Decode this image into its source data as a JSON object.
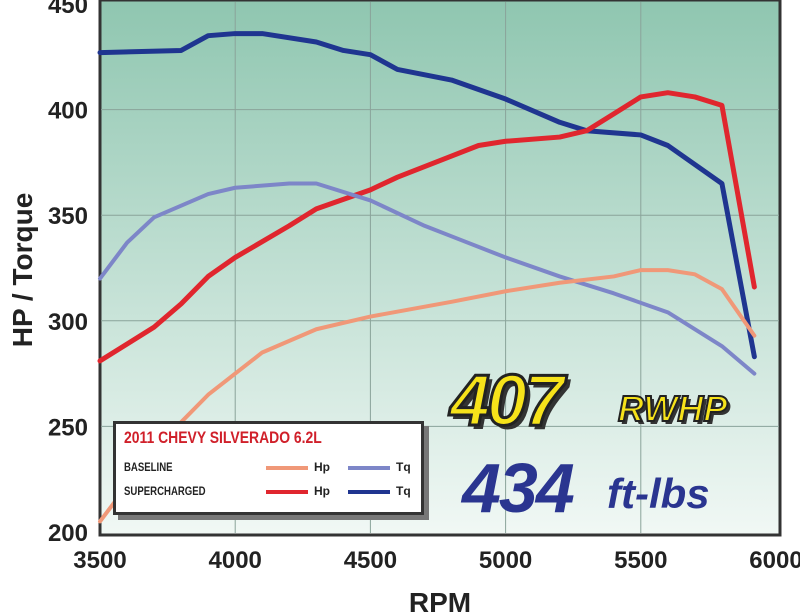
{
  "chart_data": {
    "type": "line",
    "xlabel": "RPM",
    "ylabel": "HP / Torque",
    "xlim": [
      3500,
      6000
    ],
    "ylim": [
      200,
      450
    ],
    "xticks": [
      "3500",
      "4000",
      "4500",
      "5000",
      "5500",
      "6000"
    ],
    "yticks": [
      "200",
      "250",
      "300",
      "350",
      "400",
      "450"
    ],
    "grid": true,
    "legend": {
      "title": "2011 CHEVY SILVERADO 6.2L",
      "placement": "bottom-left",
      "rows": [
        {
          "label": "BASELINE",
          "hp": "Hp",
          "tq": "Tq"
        },
        {
          "label": "SUPERCHARGED",
          "hp": "Hp",
          "tq": "Tq"
        }
      ]
    },
    "annotations": {
      "hp_value": "407",
      "hp_unit": "RWHP",
      "tq_value": "434",
      "tq_unit": "ft-lbs"
    },
    "series": [
      {
        "name": "SUPERCHARGED Tq",
        "color": "#1f3590",
        "x": [
          3500,
          3800,
          3900,
          4000,
          4100,
          4300,
          4400,
          4500,
          4600,
          4800,
          5000,
          5200,
          5300,
          5500,
          5600,
          5800,
          5920
        ],
        "y": [
          427,
          428,
          435,
          436,
          436,
          432,
          428,
          426,
          419,
          414,
          405,
          394,
          390,
          388,
          383,
          365,
          283
        ]
      },
      {
        "name": "SUPERCHARGED Hp",
        "color": "#e0262e",
        "x": [
          3500,
          3700,
          3800,
          3900,
          4000,
          4200,
          4300,
          4500,
          4600,
          4800,
          4900,
          5000,
          5200,
          5300,
          5400,
          5500,
          5600,
          5700,
          5800,
          5920
        ],
        "y": [
          281,
          297,
          308,
          321,
          330,
          345,
          353,
          362,
          368,
          378,
          383,
          385,
          387,
          390,
          398,
          406,
          408,
          406,
          402,
          316
        ]
      },
      {
        "name": "BASELINE Tq",
        "color": "#7d86c8",
        "x": [
          3500,
          3600,
          3700,
          3900,
          4000,
          4200,
          4300,
          4500,
          4700,
          4800,
          5000,
          5200,
          5400,
          5600,
          5800,
          5920
        ],
        "y": [
          320,
          337,
          349,
          360,
          363,
          365,
          365,
          357,
          345,
          340,
          330,
          321,
          313,
          304,
          288,
          275
        ]
      },
      {
        "name": "BASELINE Hp",
        "color": "#f09878",
        "x": [
          3500,
          3600,
          3700,
          3800,
          3900,
          4000,
          4100,
          4300,
          4500,
          4800,
          5000,
          5200,
          5400,
          5500,
          5600,
          5700,
          5800,
          5920
        ],
        "y": [
          205,
          222,
          238,
          252,
          265,
          275,
          285,
          296,
          302,
          309,
          314,
          318,
          321,
          324,
          324,
          322,
          315,
          293
        ]
      }
    ]
  }
}
